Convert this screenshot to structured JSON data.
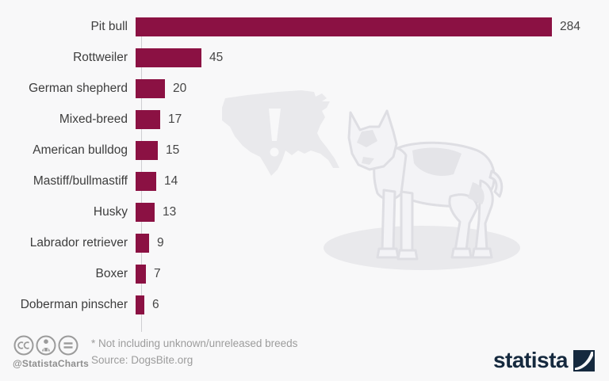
{
  "chart_data": {
    "type": "bar",
    "orientation": "horizontal",
    "categories": [
      "Pit bull",
      "Rottweiler",
      "German shepherd",
      "Mixed-breed",
      "American bulldog",
      "Mastiff/bullmastiff",
      "Husky",
      "Labrador retriever",
      "Boxer",
      "Doberman pinscher"
    ],
    "values": [
      284,
      45,
      20,
      17,
      15,
      14,
      13,
      9,
      7,
      6
    ],
    "value_labels": [
      "284",
      "45",
      "20",
      "17",
      "15",
      "14",
      "13",
      "9",
      "7",
      "6"
    ],
    "title": "",
    "xlabel": "",
    "ylabel": "",
    "xlim": [
      0,
      298
    ],
    "grid": false,
    "legend": null,
    "bar_color": "#8b1143"
  },
  "footer": {
    "license_icons": [
      "cc-icon",
      "attribution-person-icon",
      "equal-icon"
    ],
    "credit": "@StatistaCharts",
    "note": "* Not including unknown/unreleased breeds",
    "source": "Source: DogsBite.org",
    "brand": "statista"
  },
  "watermarks": [
    "us-map-exclamation",
    "pit-bull-dog"
  ],
  "colors": {
    "background": "#f8f8f9",
    "bar": "#8b1143",
    "axis": "#cfcfd2",
    "category_text": "#3d3d3d",
    "value_text": "#464646",
    "footer_text": "#9c9c9c",
    "brand_navy": "#15293e",
    "watermark_gray": "#e9e9ec"
  }
}
